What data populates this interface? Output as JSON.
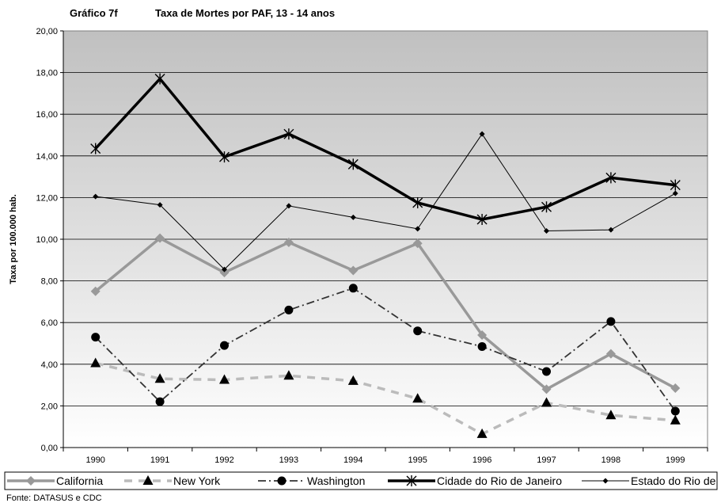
{
  "chart_data": {
    "type": "line",
    "figure_label": "Gráfico 7f",
    "title": "Taxa de Mortes por PAF, 13 - 14 anos",
    "ylabel": "Taxa por 100.000 hab.",
    "xlabel": "",
    "ylim": [
      0,
      20
    ],
    "y_ticks": [
      "0,00",
      "2,00",
      "4,00",
      "6,00",
      "8,00",
      "10,00",
      "12,00",
      "14,00",
      "16,00",
      "18,00",
      "20,00"
    ],
    "categories": [
      "1990",
      "1991",
      "1992",
      "1993",
      "1994",
      "1995",
      "1996",
      "1997",
      "1998",
      "1999"
    ],
    "grid": true,
    "legend_position": "bottom",
    "series": [
      {
        "name": "California",
        "color": "#999999",
        "marker": "diamond",
        "style": "solid-thick",
        "values": [
          7.5,
          10.05,
          8.4,
          9.85,
          8.5,
          9.8,
          5.4,
          2.8,
          4.5,
          2.85
        ]
      },
      {
        "name": "New York",
        "color": "#bbbbbb",
        "marker": "triangle",
        "style": "dashed",
        "values": [
          4.05,
          3.3,
          3.25,
          3.45,
          3.2,
          2.35,
          0.65,
          2.15,
          1.55,
          1.3
        ]
      },
      {
        "name": "Washington",
        "color": "#333333",
        "marker": "circle",
        "style": "dashdot",
        "values": [
          5.3,
          2.2,
          4.9,
          6.6,
          7.65,
          5.6,
          4.85,
          3.65,
          6.05,
          1.75
        ]
      },
      {
        "name": "Cidade do Rio de Janeiro",
        "color": "#000000",
        "marker": "star",
        "style": "solid-bold",
        "values": [
          14.35,
          17.7,
          13.95,
          15.05,
          13.6,
          11.75,
          10.95,
          11.55,
          12.95,
          12.6
        ]
      },
      {
        "name": "Estado do Rio de",
        "color": "#000000",
        "marker": "small-diamond",
        "style": "solid-thin",
        "values": [
          12.05,
          11.65,
          8.55,
          11.6,
          11.05,
          10.5,
          15.05,
          10.4,
          10.45,
          12.2
        ]
      }
    ],
    "source": "Fonte: DATASUS e CDC"
  }
}
